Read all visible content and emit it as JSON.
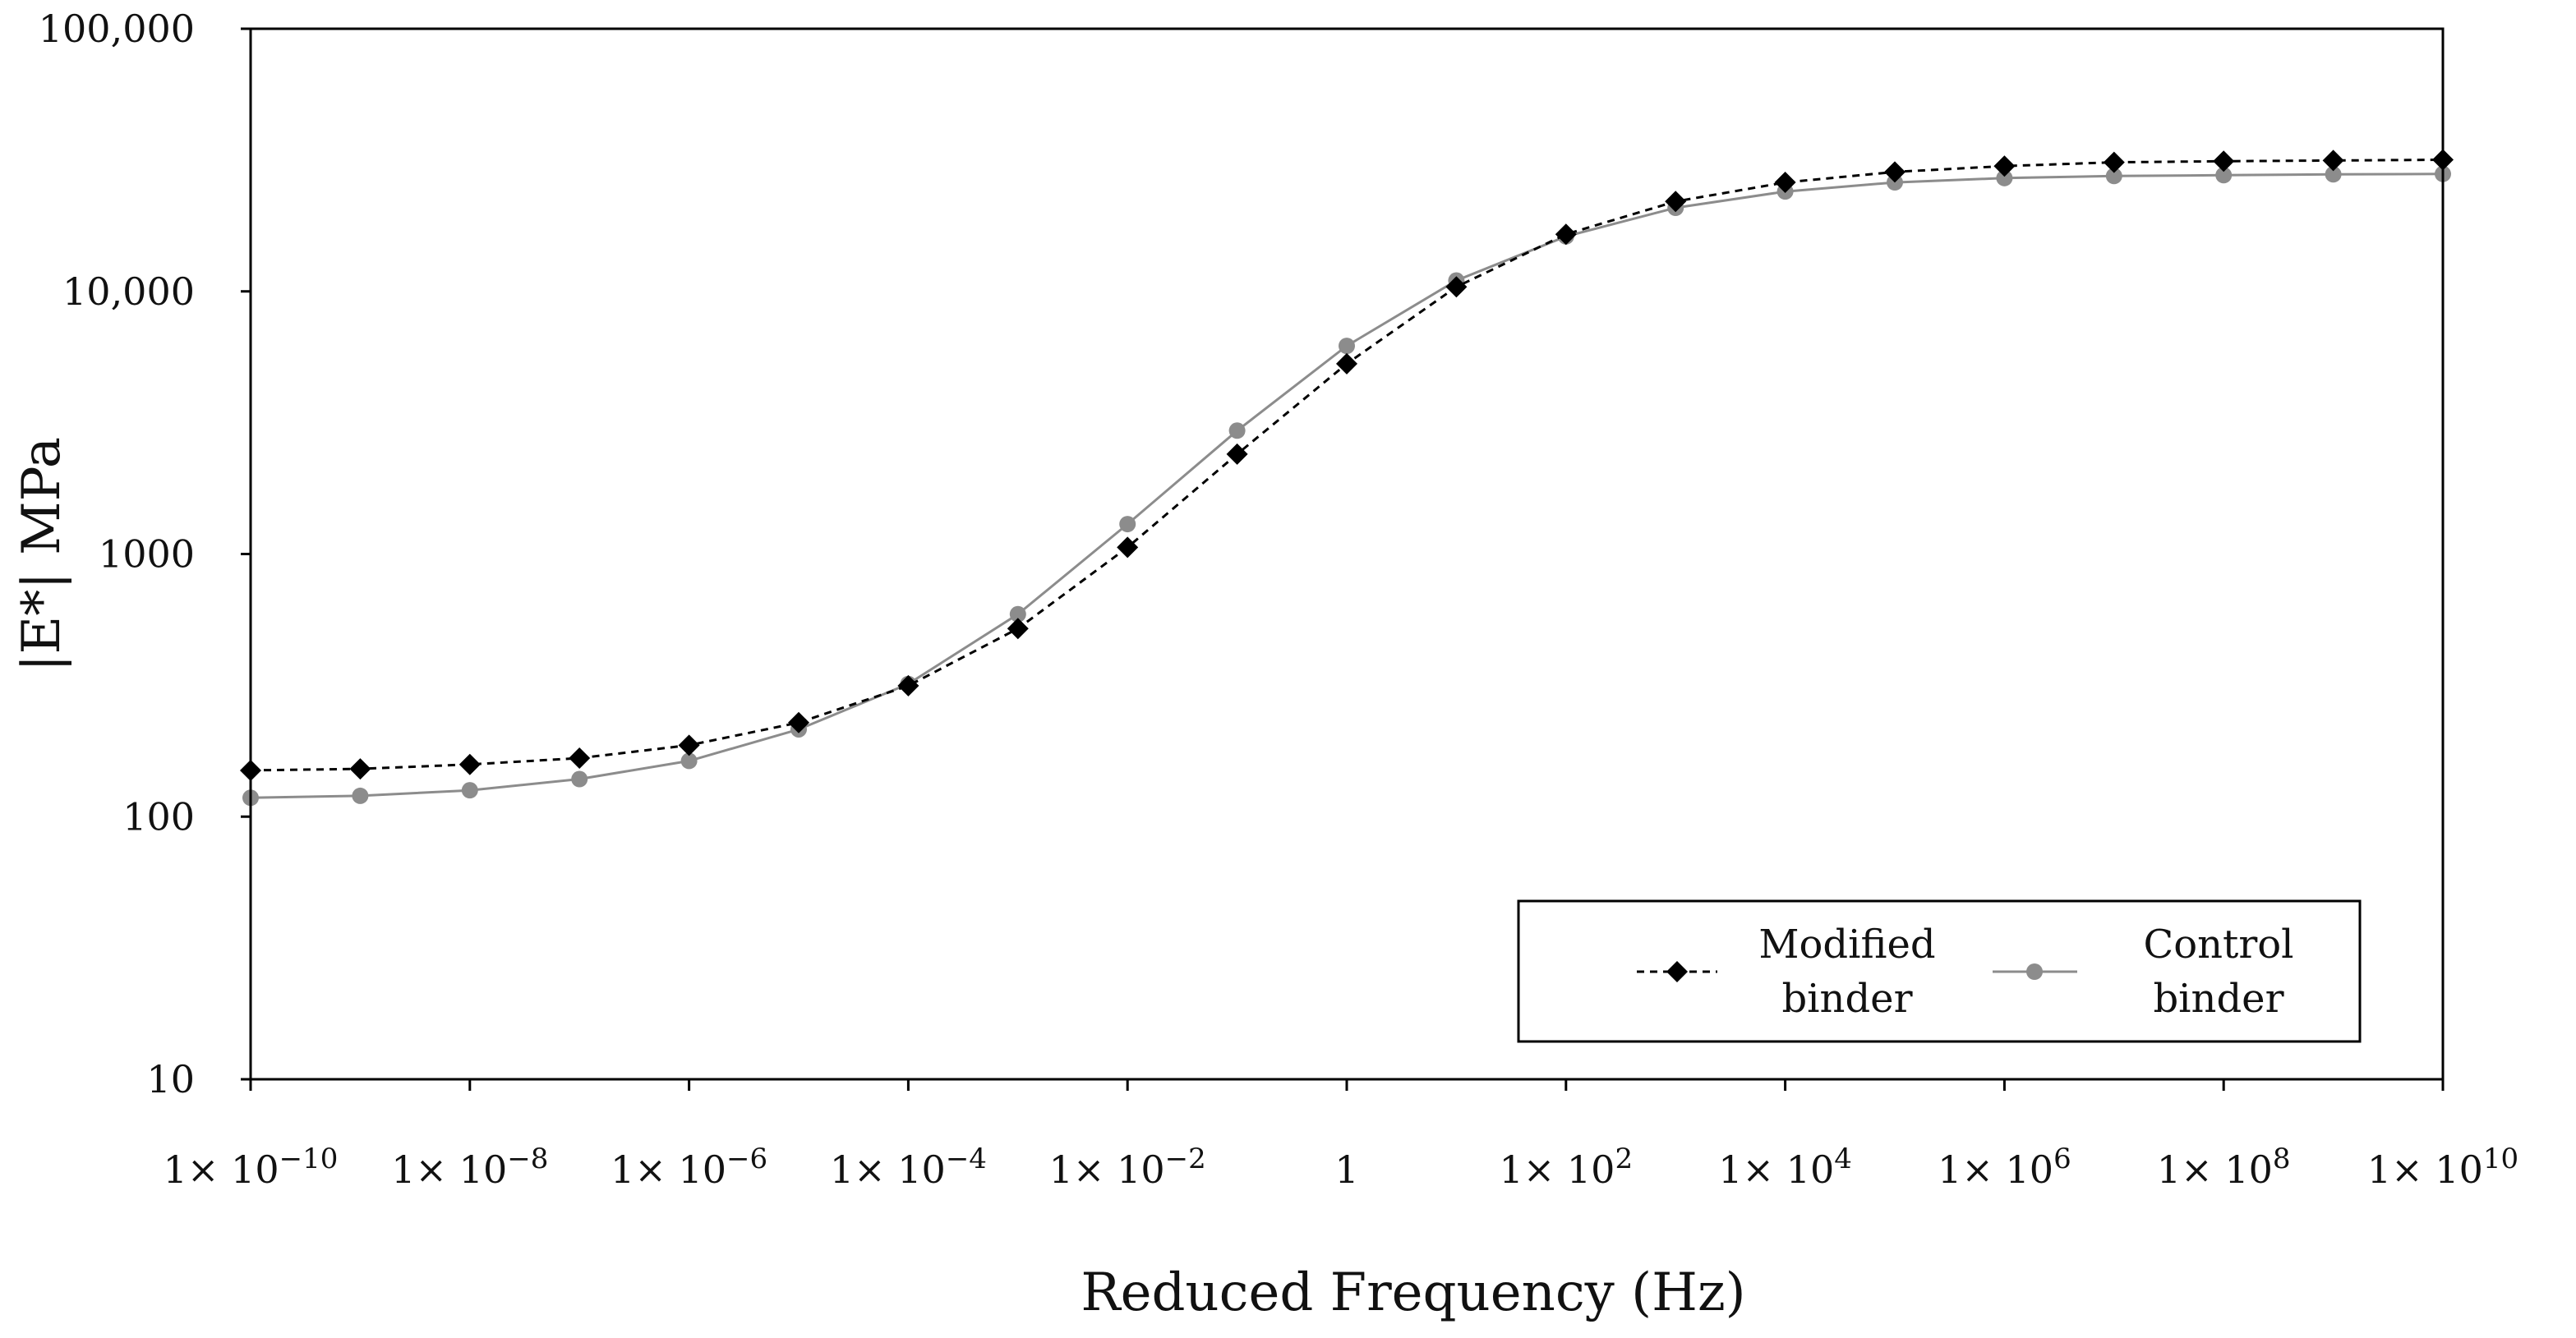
{
  "chart_data": {
    "type": "line",
    "xscale": "log",
    "yscale": "log",
    "x": [
      1e-10,
      1e-09,
      1e-08,
      1e-07,
      1e-06,
      1e-05,
      0.0001,
      0.001,
      0.01,
      0.1,
      1,
      10,
      100,
      1000,
      10000,
      100000,
      1000000,
      10000000,
      100000000,
      1000000000,
      10000000000
    ],
    "series": [
      {
        "name": "Modified binder",
        "marker": "diamond",
        "line_style": "dashed",
        "color": "#000000",
        "values": [
          150,
          152,
          158,
          167,
          187,
          228,
          315,
          520,
          1060,
          2400,
          5300,
          10400,
          16500,
          22000,
          26000,
          28500,
          30000,
          31000,
          31300,
          31500,
          31700
        ]
      },
      {
        "name": "Control binder",
        "marker": "circle",
        "line_style": "solid",
        "color": "#8c8c8c",
        "values": [
          118,
          120,
          126,
          139,
          163,
          215,
          320,
          590,
          1300,
          2950,
          6200,
          11000,
          16200,
          20800,
          24000,
          26000,
          27000,
          27500,
          27700,
          27900,
          28000
        ]
      }
    ],
    "xlim": [
      1e-10,
      10000000000
    ],
    "ylim": [
      10,
      100000
    ],
    "x_ticks": [
      {
        "base": "1× 10",
        "exp": "−10",
        "value": 1e-10
      },
      {
        "base": "1× 10",
        "exp": "−8",
        "value": 1e-08
      },
      {
        "base": "1× 10",
        "exp": "−6",
        "value": 1e-06
      },
      {
        "base": "1× 10",
        "exp": "−4",
        "value": 0.0001
      },
      {
        "base": "1× 10",
        "exp": "−2",
        "value": 0.01
      },
      {
        "base": "1",
        "exp": "",
        "value": 1
      },
      {
        "base": "1× 10",
        "exp": "2",
        "value": 100
      },
      {
        "base": "1× 10",
        "exp": "4",
        "value": 10000
      },
      {
        "base": "1× 10",
        "exp": "6",
        "value": 1000000
      },
      {
        "base": "1× 10",
        "exp": "8",
        "value": 100000000
      },
      {
        "base": "1× 10",
        "exp": "10",
        "value": 10000000000
      }
    ],
    "y_ticks": [
      {
        "label": "10",
        "value": 10
      },
      {
        "label": "100",
        "value": 100
      },
      {
        "label": "1000",
        "value": 1000
      },
      {
        "label": "10,000",
        "value": 10000
      },
      {
        "label": "100,000",
        "value": 100000
      }
    ],
    "title": "",
    "xlabel": "Reduced Frequency (Hz)",
    "ylabel": "|E*| MPa",
    "grid": false,
    "legend": {
      "position": "bottom-right",
      "entries": [
        {
          "line1": "Modified",
          "line2": "binder"
        },
        {
          "line1": "Control",
          "line2": "binder"
        }
      ]
    }
  }
}
